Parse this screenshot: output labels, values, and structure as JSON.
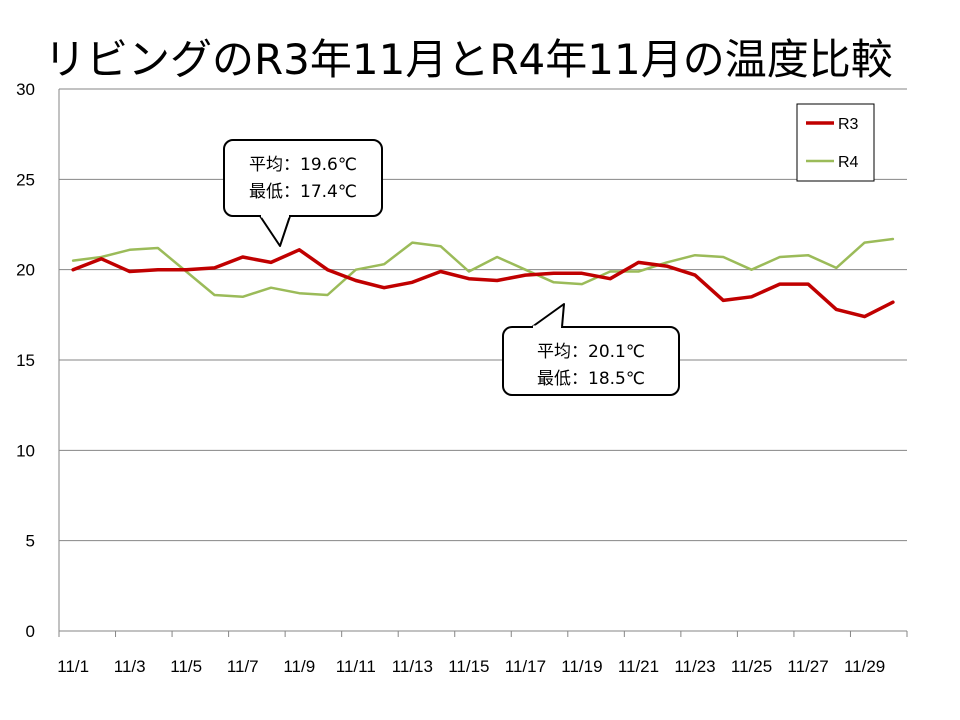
{
  "title": "リビングのR3年11月とR4年11月の温度比較",
  "chart_data": {
    "type": "line",
    "title": "リビングのR3年11月とR4年11月の温度比較",
    "categories": [
      "11/1",
      "11/2",
      "11/3",
      "11/4",
      "11/5",
      "11/6",
      "11/7",
      "11/8",
      "11/9",
      "11/10",
      "11/11",
      "11/12",
      "11/13",
      "11/14",
      "11/15",
      "11/16",
      "11/17",
      "11/18",
      "11/19",
      "11/20",
      "11/21",
      "11/22",
      "11/23",
      "11/24",
      "11/25",
      "11/26",
      "11/27",
      "11/28",
      "11/29",
      "11/30"
    ],
    "tick_labels": [
      "11/1",
      "11/3",
      "11/5",
      "11/7",
      "11/9",
      "11/11",
      "11/13",
      "11/15",
      "11/17",
      "11/19",
      "11/21",
      "11/23",
      "11/25",
      "11/27",
      "11/29"
    ],
    "ylim": [
      0,
      30
    ],
    "yticks": [
      0,
      5,
      10,
      15,
      20,
      25,
      30
    ],
    "grid": true,
    "legend_position": "top-right",
    "series": [
      {
        "name": "R3",
        "color": "#c00000",
        "values": [
          20.0,
          20.6,
          19.9,
          20.0,
          20.0,
          20.1,
          20.7,
          20.4,
          21.1,
          20.0,
          19.4,
          19.0,
          19.3,
          19.9,
          19.5,
          19.4,
          19.7,
          19.8,
          19.8,
          19.5,
          20.4,
          20.2,
          19.7,
          18.3,
          18.5,
          19.2,
          19.2,
          17.8,
          17.4,
          18.2
        ]
      },
      {
        "name": "R4",
        "color": "#9bbb59",
        "values": [
          20.5,
          20.7,
          21.1,
          21.2,
          19.9,
          18.6,
          18.5,
          19.0,
          18.7,
          18.6,
          20.0,
          20.3,
          21.5,
          21.3,
          19.9,
          20.7,
          20.0,
          19.3,
          19.2,
          19.9,
          19.9,
          20.4,
          20.8,
          20.7,
          20.0,
          20.7,
          20.8,
          20.1,
          21.5,
          21.7
        ]
      }
    ],
    "annotations": [
      {
        "series": "R3",
        "lines": [
          "平均：19.6℃",
          "最低：17.4℃"
        ]
      },
      {
        "series": "R4",
        "lines": [
          "平均：20.1℃",
          "最低：18.5℃"
        ]
      }
    ]
  }
}
